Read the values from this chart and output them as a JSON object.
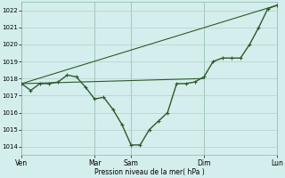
{
  "background_color": "#d4eeed",
  "grid_color": "#b0d0cc",
  "line_color": "#2d5a27",
  "ylabel_min": 1013.5,
  "ylabel_max": 1022.5,
  "yticks": [
    1014,
    1015,
    1016,
    1017,
    1018,
    1019,
    1020,
    1021,
    1022
  ],
  "xlabel": "Pression niveau de la mer( hPa )",
  "xtick_labels": [
    "Ven",
    "Mar",
    "Sam",
    "Dim",
    "Lun"
  ],
  "xtick_positions": [
    0,
    4,
    6,
    10,
    14
  ],
  "vlines": [
    0,
    4,
    6,
    10,
    14
  ],
  "main_series_x": [
    0,
    0.5,
    1,
    1.5,
    2,
    2.5,
    3,
    3.5,
    4,
    4.5,
    5,
    5.5,
    6,
    6.5,
    7,
    7.5,
    8,
    8.5,
    9,
    9.5,
    10,
    10.5,
    11,
    11.5,
    12,
    12.5,
    13,
    13.5,
    14
  ],
  "main_series_y": [
    1017.7,
    1017.3,
    1017.7,
    1017.7,
    1017.8,
    1018.2,
    1018.1,
    1017.5,
    1016.8,
    1016.9,
    1016.2,
    1015.3,
    1014.1,
    1014.1,
    1015.0,
    1015.5,
    1016.0,
    1017.7,
    1017.7,
    1017.8,
    1018.1,
    1019.0,
    1019.2,
    1019.2,
    1019.2,
    1020.0,
    1021.0,
    1022.1,
    1022.3
  ],
  "flat_line_x": [
    0,
    10
  ],
  "flat_line_y": [
    1017.7,
    1018.0
  ],
  "diag_line_x": [
    0,
    14
  ],
  "diag_line_y": [
    1017.7,
    1022.3
  ],
  "figwidth": 3.2,
  "figheight": 2.0,
  "dpi": 100
}
